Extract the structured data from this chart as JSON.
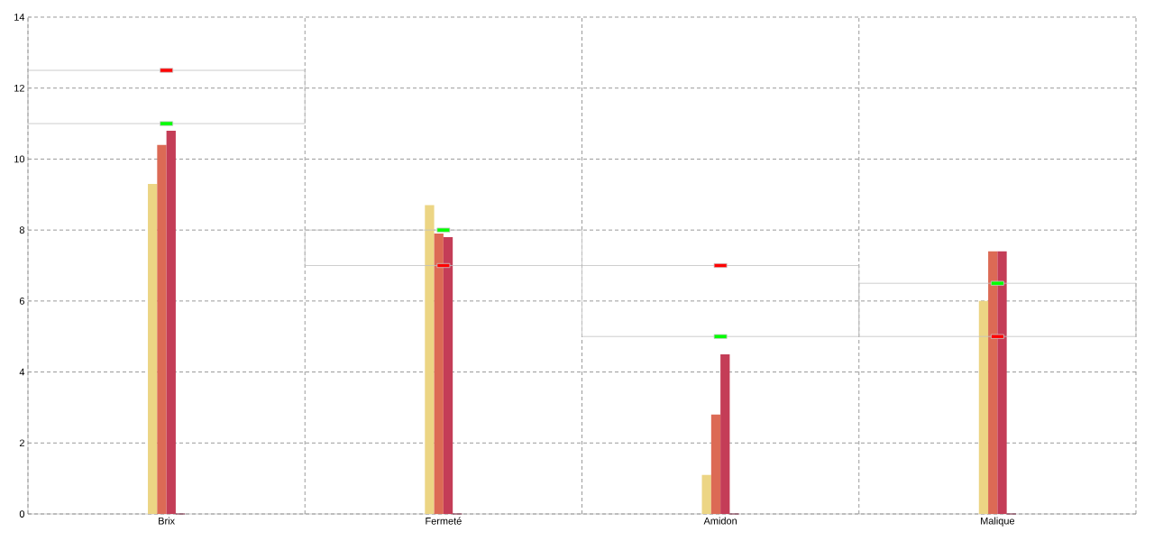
{
  "chart_data": {
    "type": "bar",
    "categories": [
      "Brix",
      "Fermeté",
      "Amidon",
      "Malique"
    ],
    "series": [
      {
        "color": "#ecd584",
        "values": [
          9.3,
          8.7,
          1.1,
          6.0
        ]
      },
      {
        "color": "#dc6a55",
        "values": [
          10.4,
          7.9,
          2.8,
          7.4
        ]
      },
      {
        "color": "#c43d57",
        "values": [
          10.8,
          7.8,
          4.5,
          7.4
        ]
      },
      {
        "color": "#7b2a45",
        "values": [
          0,
          0,
          0,
          0
        ]
      },
      {
        "type": "bar",
        "color": "#c0c0c0",
        "base": [
          11,
          7,
          5,
          5
        ],
        "values": [
          1.5,
          1,
          2,
          1.5
        ]
      },
      {
        "type": "scatter",
        "marker": "square",
        "color": "#00ff00",
        "x": [
          "Brix",
          "Fermeté",
          "Amidon",
          "Malique"
        ],
        "values": [
          11,
          8,
          5,
          6.5
        ]
      },
      {
        "type": "scatter",
        "marker": "square",
        "color": "#ff0000",
        "x": [
          "Brix",
          "Fermeté",
          "Amidon",
          "Malique"
        ],
        "values": [
          12.5,
          7,
          7,
          5
        ]
      }
    ],
    "ylim": [
      0,
      14
    ],
    "yticks": [
      0,
      2,
      4,
      6,
      8,
      10,
      12,
      14
    ],
    "grid": true
  }
}
